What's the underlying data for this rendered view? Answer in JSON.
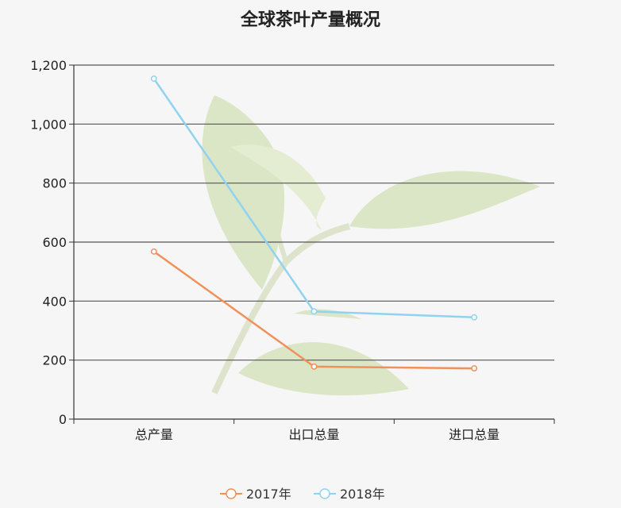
{
  "chart_data": {
    "type": "line",
    "title": "全球茶叶产量概况",
    "categories": [
      "总产量",
      "出口总量",
      "进口总量"
    ],
    "y_ticks": [
      "0",
      "200",
      "400",
      "600",
      "800",
      "1,000",
      "1,200"
    ],
    "ylim": [
      0,
      1200
    ],
    "grid": true,
    "legend_placement": "bottom-center",
    "series": [
      {
        "name": "2017年",
        "values": [
          568,
          178,
          172
        ],
        "color": "#f0905a"
      },
      {
        "name": "2018年",
        "values": [
          1154,
          365,
          345
        ],
        "color": "#8fd3f0"
      }
    ],
    "background_image": "tea-leaf-watermark"
  }
}
